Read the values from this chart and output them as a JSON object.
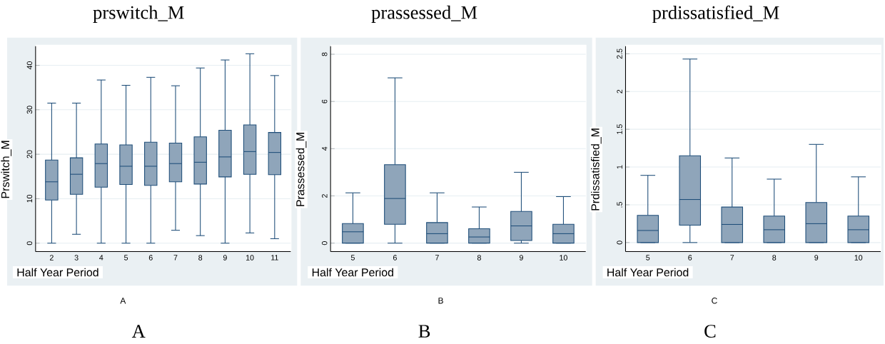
{
  "chart_data": [
    {
      "type": "box",
      "title": "prswitch_M",
      "xlabel": "Half Year Period",
      "ylabel": "Prswitch_M",
      "categories": [
        "2",
        "3",
        "4",
        "5",
        "6",
        "7",
        "8",
        "9",
        "10",
        "11"
      ],
      "boxes": [
        {
          "low": 0,
          "q1": 9.7,
          "median": 13.8,
          "q3": 18.7,
          "high": 31.5
        },
        {
          "low": 2.0,
          "q1": 11.0,
          "median": 15.5,
          "q3": 19.2,
          "high": 31.5
        },
        {
          "low": 0,
          "q1": 12.6,
          "median": 17.9,
          "q3": 22.3,
          "high": 36.7
        },
        {
          "low": 0,
          "q1": 13.2,
          "median": 17.3,
          "q3": 22.1,
          "high": 35.5
        },
        {
          "low": 0,
          "q1": 13.0,
          "median": 17.3,
          "q3": 22.7,
          "high": 37.3
        },
        {
          "low": 2.9,
          "q1": 13.8,
          "median": 17.9,
          "q3": 22.5,
          "high": 35.4
        },
        {
          "low": 1.7,
          "q1": 13.3,
          "median": 18.2,
          "q3": 23.9,
          "high": 39.4
        },
        {
          "low": 0,
          "q1": 14.9,
          "median": 19.4,
          "q3": 25.4,
          "high": 41.2
        },
        {
          "low": 2.3,
          "q1": 15.5,
          "median": 20.6,
          "q3": 26.6,
          "high": 42.6
        },
        {
          "low": 1.0,
          "q1": 15.4,
          "median": 20.4,
          "q3": 24.9,
          "high": 37.7
        }
      ],
      "color": "#8fa5ba",
      "ylim": [
        -1.9,
        44.3
      ],
      "yticks": [
        0,
        10,
        20,
        30,
        40
      ],
      "grid": "y",
      "annotations": [
        "A",
        "A"
      ]
    },
    {
      "type": "box",
      "title": "prassessed_M",
      "xlabel": "Half Year Period",
      "ylabel": "Prassessed_M",
      "categories": [
        "5",
        "6",
        "7",
        "8",
        "9",
        "10"
      ],
      "boxes": [
        {
          "low": 0,
          "q1": 0,
          "median": 0.48,
          "q3": 0.83,
          "high": 2.13
        },
        {
          "low": 0,
          "q1": 0.8,
          "median": 1.89,
          "q3": 3.32,
          "high": 7.0
        },
        {
          "low": 0,
          "q1": 0,
          "median": 0.4,
          "q3": 0.87,
          "high": 2.13
        },
        {
          "low": 0,
          "q1": 0,
          "median": 0.26,
          "q3": 0.61,
          "high": 1.53
        },
        {
          "low": 0,
          "q1": 0.11,
          "median": 0.73,
          "q3": 1.34,
          "high": 3.0
        },
        {
          "low": 0,
          "q1": 0,
          "median": 0.4,
          "q3": 0.8,
          "high": 1.97
        }
      ],
      "color": "#8fa5ba",
      "ylim": [
        -0.36,
        8.34
      ],
      "yticks": [
        0,
        2,
        4,
        6,
        8
      ],
      "grid": "y",
      "annotations": [
        "B",
        "B"
      ]
    },
    {
      "type": "box",
      "title": "prdissatisfied_M",
      "xlabel": "Half Year Period",
      "ylabel": "Prdissatisfied_M",
      "categories": [
        "5",
        "6",
        "7",
        "8",
        "9",
        "10"
      ],
      "boxes": [
        {
          "low": 0,
          "q1": 0,
          "median": 0.16,
          "q3": 0.36,
          "high": 0.89
        },
        {
          "low": 0,
          "q1": 0.23,
          "median": 0.57,
          "q3": 1.15,
          "high": 2.43
        },
        {
          "low": 0,
          "q1": 0,
          "median": 0.24,
          "q3": 0.47,
          "high": 1.12
        },
        {
          "low": 0,
          "q1": 0,
          "median": 0.17,
          "q3": 0.35,
          "high": 0.84
        },
        {
          "low": 0,
          "q1": 0,
          "median": 0.25,
          "q3": 0.53,
          "high": 1.3
        },
        {
          "low": 0,
          "q1": 0,
          "median": 0.17,
          "q3": 0.35,
          "high": 0.87
        }
      ],
      "color": "#8fa5ba",
      "ylim": [
        -0.12,
        2.6
      ],
      "yticks": [
        0,
        {
          "value": 0.5,
          "label": ".5"
        },
        1,
        1.5,
        2,
        2.5
      ],
      "grid": "y",
      "annotations": [
        "C",
        "C"
      ]
    }
  ]
}
